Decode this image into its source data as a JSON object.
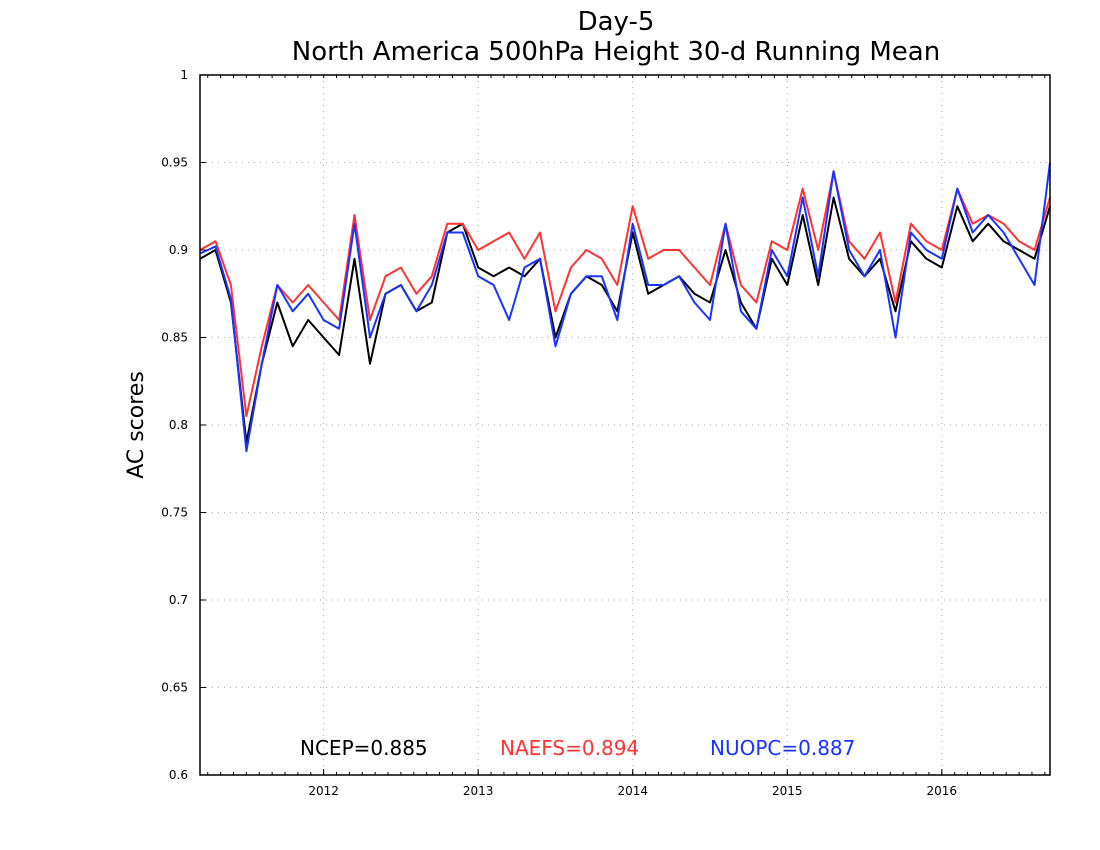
{
  "chart_data": {
    "type": "line",
    "title": "Day-5",
    "subtitle": "North America 500hPa Height 30-d Running Mean",
    "xlabel": "",
    "ylabel": "AC scores",
    "xlim": [
      2011.2,
      2016.7
    ],
    "ylim": [
      0.6,
      1.0
    ],
    "yticks": [
      "0.6",
      "0.65",
      "0.7",
      "0.75",
      "0.8",
      "0.85",
      "0.9",
      "0.95",
      "1"
    ],
    "xticks": [
      "2012",
      "2013",
      "2014",
      "2015",
      "2016"
    ],
    "grid": true,
    "legend": [
      {
        "name": "NCEP",
        "label": "NCEP=0.885",
        "color": "#000000"
      },
      {
        "name": "NAEFS",
        "label": "NAEFS=0.894",
        "color": "#ff3333"
      },
      {
        "name": "NUOPC",
        "label": "NUOPC=0.887",
        "color": "#1a33ff"
      }
    ],
    "x": [
      2011.2,
      2011.3,
      2011.4,
      2011.5,
      2011.6,
      2011.7,
      2011.8,
      2011.9,
      2012.0,
      2012.1,
      2012.2,
      2012.3,
      2012.4,
      2012.5,
      2012.6,
      2012.7,
      2012.8,
      2012.9,
      2013.0,
      2013.1,
      2013.2,
      2013.3,
      2013.4,
      2013.5,
      2013.6,
      2013.7,
      2013.8,
      2013.9,
      2014.0,
      2014.1,
      2014.2,
      2014.3,
      2014.4,
      2014.5,
      2014.6,
      2014.7,
      2014.8,
      2014.9,
      2015.0,
      2015.1,
      2015.2,
      2015.3,
      2015.4,
      2015.5,
      2015.6,
      2015.7,
      2015.8,
      2015.9,
      2016.0,
      2016.1,
      2016.2,
      2016.3,
      2016.4,
      2016.5,
      2016.6,
      2016.7
    ],
    "series": [
      {
        "name": "NCEP",
        "color": "#000000",
        "values": [
          0.895,
          0.9,
          0.87,
          0.79,
          0.835,
          0.87,
          0.845,
          0.86,
          0.85,
          0.84,
          0.895,
          0.835,
          0.875,
          0.88,
          0.865,
          0.87,
          0.91,
          0.915,
          0.89,
          0.885,
          0.89,
          0.885,
          0.895,
          0.85,
          0.875,
          0.885,
          0.88,
          0.865,
          0.91,
          0.875,
          0.88,
          0.885,
          0.875,
          0.87,
          0.9,
          0.87,
          0.855,
          0.895,
          0.88,
          0.92,
          0.88,
          0.93,
          0.895,
          0.885,
          0.895,
          0.865,
          0.905,
          0.895,
          0.89,
          0.925,
          0.905,
          0.915,
          0.905,
          0.9,
          0.895,
          0.925
        ]
      },
      {
        "name": "NAEFS",
        "color": "#ff3333",
        "values": [
          0.9,
          0.905,
          0.88,
          0.805,
          0.845,
          0.88,
          0.87,
          0.88,
          0.87,
          0.86,
          0.92,
          0.86,
          0.885,
          0.89,
          0.875,
          0.885,
          0.915,
          0.915,
          0.9,
          0.905,
          0.91,
          0.895,
          0.91,
          0.865,
          0.89,
          0.9,
          0.895,
          0.88,
          0.925,
          0.895,
          0.9,
          0.9,
          0.89,
          0.88,
          0.915,
          0.88,
          0.87,
          0.905,
          0.9,
          0.935,
          0.9,
          0.945,
          0.905,
          0.895,
          0.91,
          0.87,
          0.915,
          0.905,
          0.9,
          0.935,
          0.915,
          0.92,
          0.915,
          0.905,
          0.9,
          0.93
        ]
      },
      {
        "name": "NUOPC",
        "color": "#1a33ff",
        "values": [
          0.898,
          0.902,
          0.872,
          0.785,
          0.835,
          0.88,
          0.865,
          0.875,
          0.86,
          0.855,
          0.915,
          0.85,
          0.875,
          0.88,
          0.865,
          0.88,
          0.91,
          0.91,
          0.885,
          0.88,
          0.86,
          0.89,
          0.895,
          0.845,
          0.875,
          0.885,
          0.885,
          0.86,
          0.915,
          0.88,
          0.88,
          0.885,
          0.87,
          0.86,
          0.915,
          0.865,
          0.855,
          0.9,
          0.885,
          0.93,
          0.885,
          0.945,
          0.9,
          0.885,
          0.9,
          0.85,
          0.91,
          0.9,
          0.895,
          0.935,
          0.91,
          0.92,
          0.91,
          0.895,
          0.88,
          0.95
        ]
      }
    ]
  }
}
